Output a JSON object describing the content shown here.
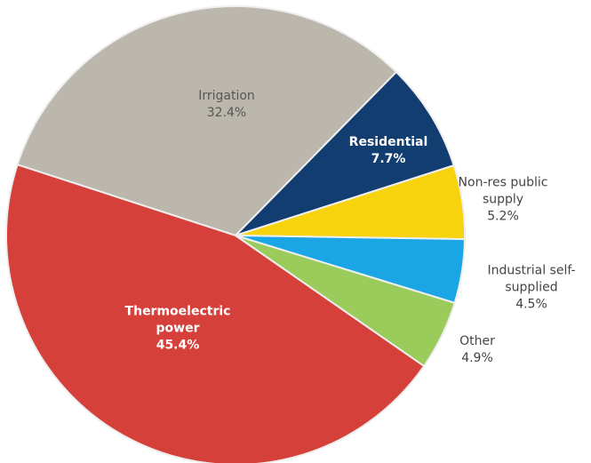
{
  "chart_data": {
    "type": "pie",
    "categories": [
      "Irrigation",
      "Residential",
      "Non-res public supply",
      "Industrial self-supplied",
      "Other",
      "Thermoelectric power"
    ],
    "values": [
      32.4,
      7.7,
      5.2,
      4.5,
      4.9,
      45.4
    ],
    "value_labels": [
      "32.4%",
      "7.7%",
      "5.2%",
      "4.5%",
      "4.9%",
      "45.4%"
    ],
    "colors": [
      "#bcb7ad",
      "#123d70",
      "#f6d30d",
      "#1aa6e4",
      "#9bcb5b",
      "#d5403a"
    ]
  }
}
